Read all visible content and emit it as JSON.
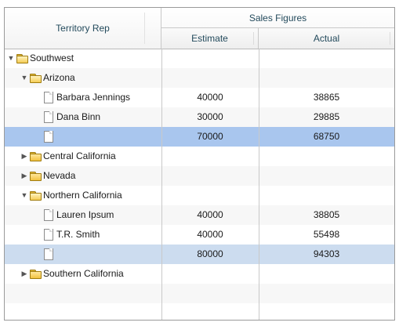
{
  "header": {
    "territory_rep": "Territory Rep",
    "sales_figures": "Sales Figures",
    "estimate": "Estimate",
    "actual": "Actual"
  },
  "rows": [
    {
      "label": "Southwest",
      "estimate": "",
      "actual": ""
    },
    {
      "label": "Arizona",
      "estimate": "",
      "actual": ""
    },
    {
      "label": "Barbara Jennings",
      "estimate": "40000",
      "actual": "38865"
    },
    {
      "label": "Dana Binn",
      "estimate": "30000",
      "actual": "29885"
    },
    {
      "label": "",
      "estimate": "70000",
      "actual": "68750"
    },
    {
      "label": "Central California",
      "estimate": "",
      "actual": ""
    },
    {
      "label": "Nevada",
      "estimate": "",
      "actual": ""
    },
    {
      "label": "Northern California",
      "estimate": "",
      "actual": ""
    },
    {
      "label": "Lauren Ipsum",
      "estimate": "40000",
      "actual": "38805"
    },
    {
      "label": "T.R. Smith",
      "estimate": "40000",
      "actual": "55498"
    },
    {
      "label": "",
      "estimate": "80000",
      "actual": "94303"
    },
    {
      "label": "Southern California",
      "estimate": "",
      "actual": ""
    }
  ],
  "icons": {
    "expanded": "triangle-down-icon",
    "collapsed": "triangle-right-icon",
    "folder_open": "folder-open-icon",
    "folder_closed": "folder-closed-icon",
    "document": "document-icon"
  },
  "colors": {
    "selected_row": "#a9c6ee",
    "summary_row": "#ccdcef",
    "header_text": "#234a5c"
  }
}
